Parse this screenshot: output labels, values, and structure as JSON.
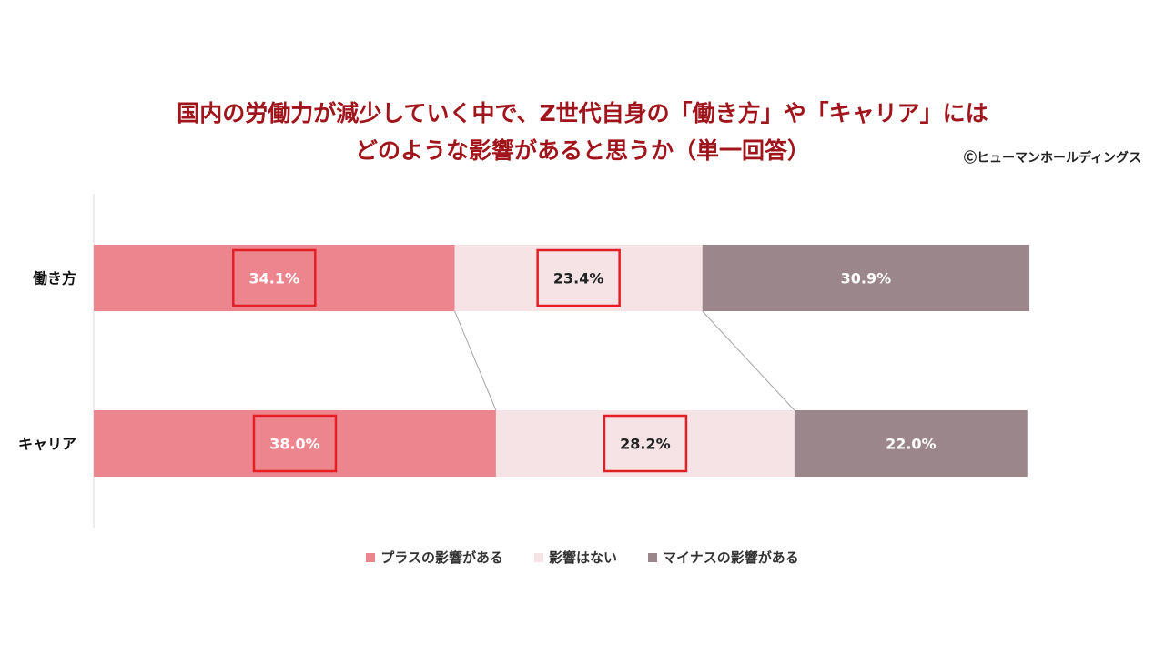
{
  "title_line1": "国内の労働力が減少していく中で、Z世代自身の「働き方」や「キャリア」には",
  "title_line2": "どのような影響があると思うか（単一回答）",
  "credit": "Ⓒヒューマンホールディングス",
  "chart_data": {
    "type": "bar",
    "orientation": "horizontal",
    "stacked": "100%",
    "categories": [
      "働き方",
      "キャリア"
    ],
    "series": [
      {
        "name": "プラスの影響がある",
        "values": [
          34.1,
          38.0
        ],
        "labels": [
          "34.1%",
          "38.0%"
        ],
        "color": "#ec858e",
        "label_color": "#ffffff"
      },
      {
        "name": "影響はない",
        "values": [
          23.4,
          28.2
        ],
        "labels": [
          "23.4%",
          "28.2%"
        ],
        "color": "#f5e3e6",
        "label_color": "#222222"
      },
      {
        "name": "マイナスの影響がある",
        "values": [
          30.9,
          22.0
        ],
        "labels": [
          "30.9%",
          "22.0%"
        ],
        "color": "#9b868b",
        "label_color": "#ffffff"
      }
    ],
    "highlight_boxes_on_series": [
      0,
      1
    ],
    "highlight_color": "#e41e25",
    "connector_lines": true,
    "legend_position": "bottom"
  }
}
